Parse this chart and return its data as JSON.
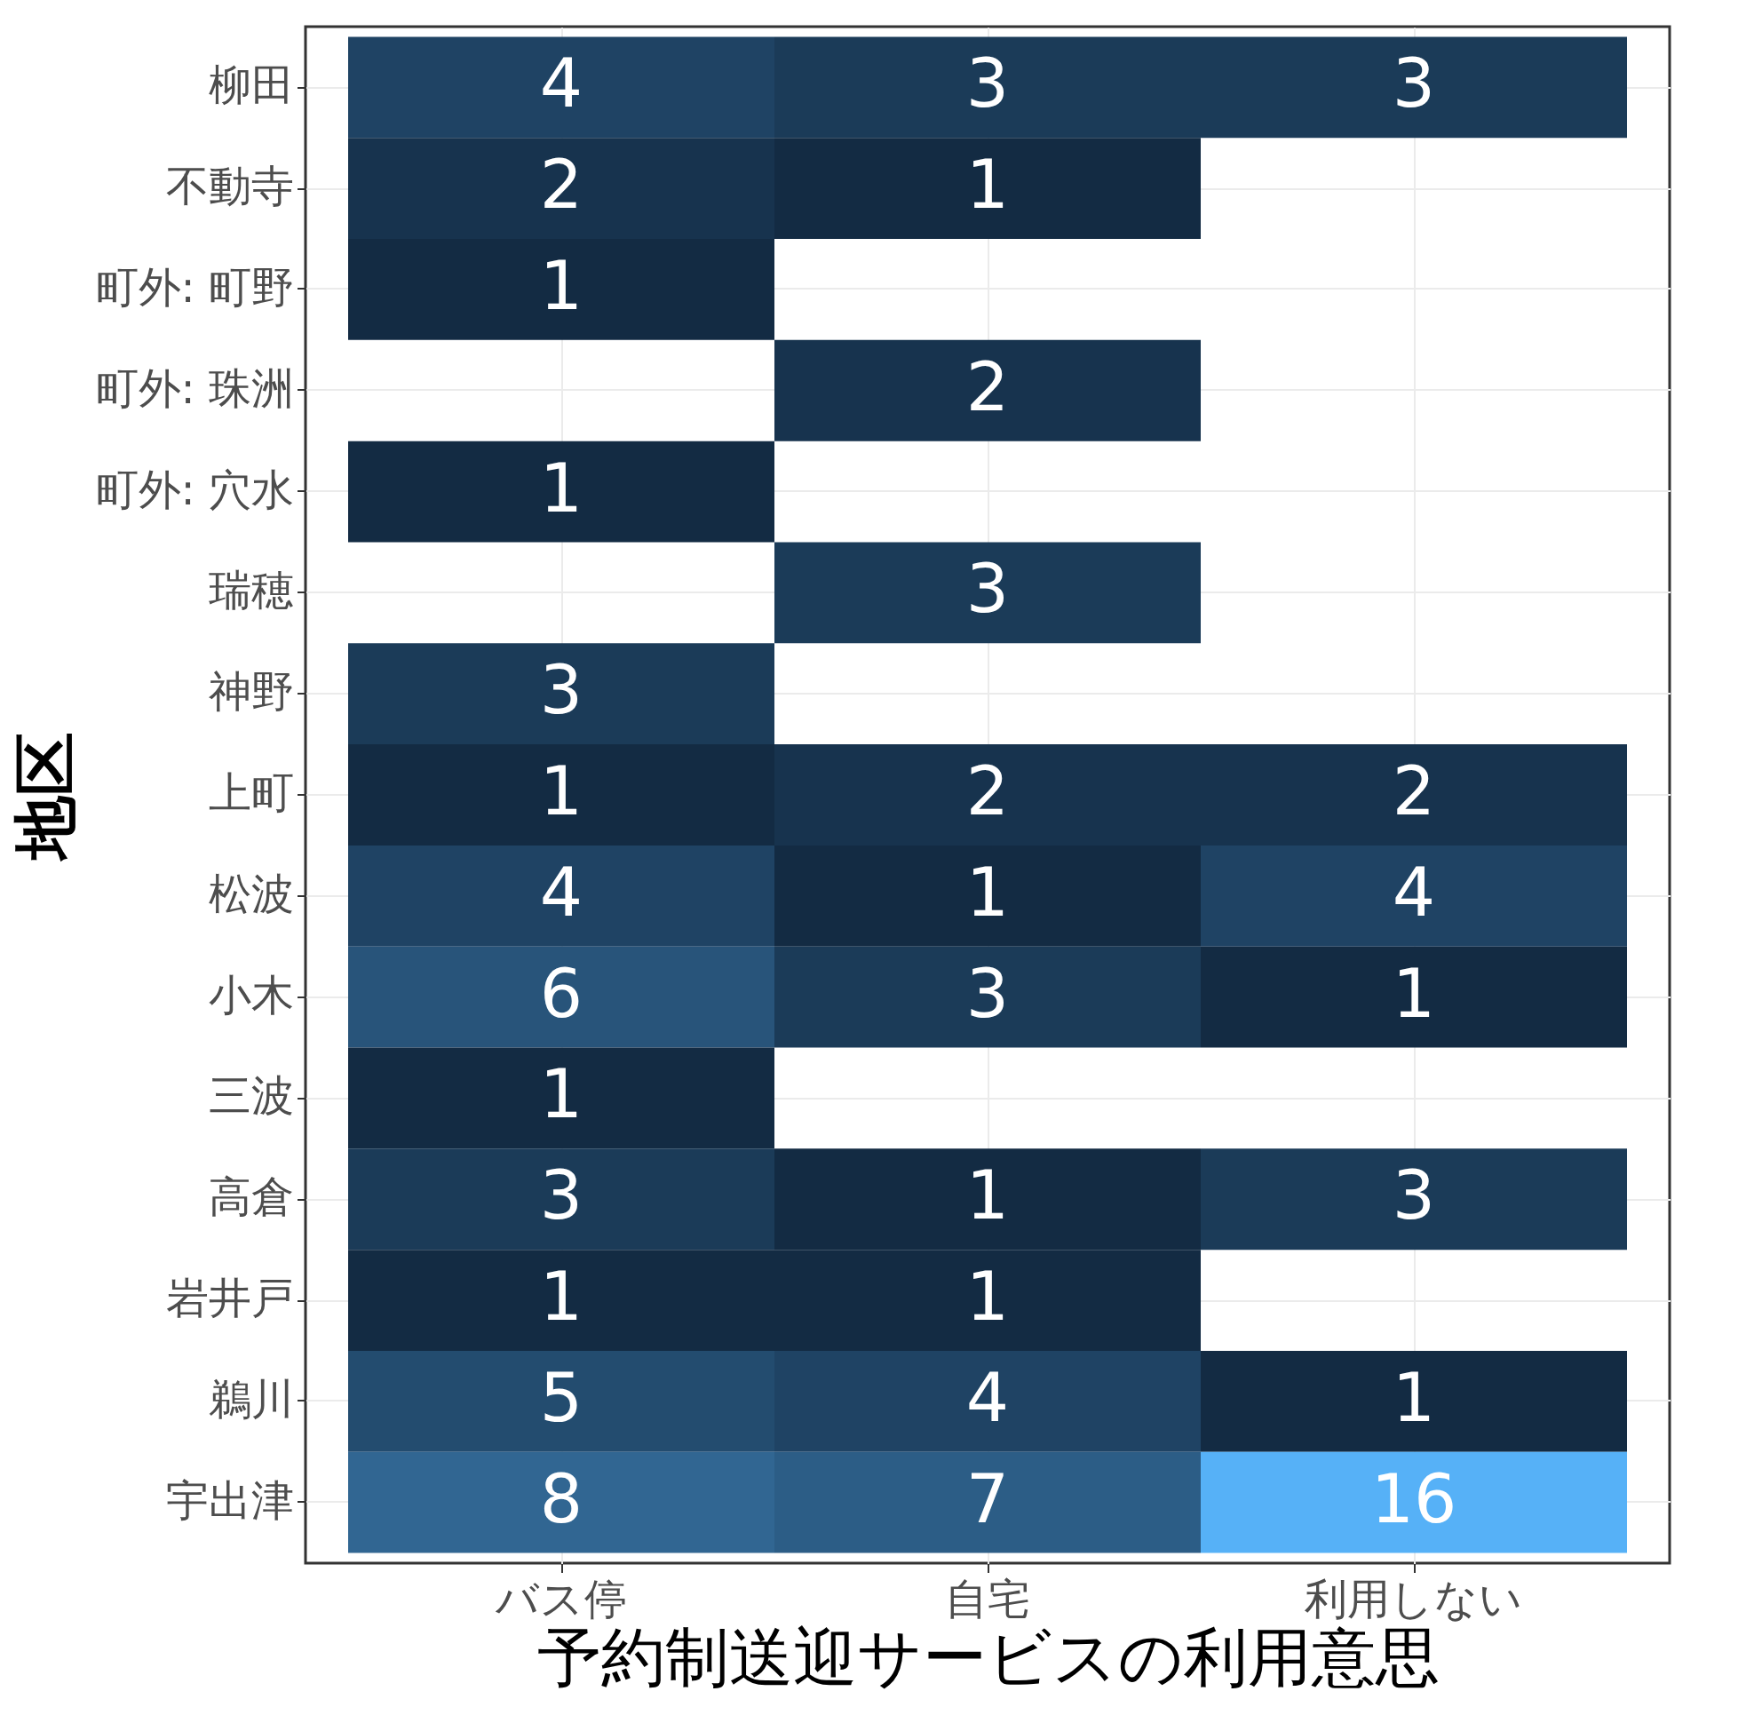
{
  "chart_data": {
    "type": "heatmap",
    "xlabel": "予約制送迎サービスの利用意思",
    "ylabel": "地区",
    "categories": [
      "バス停",
      "自宅",
      "利用しない"
    ],
    "y_categories": [
      "柳田",
      "不動寺",
      "町外: 町野",
      "町外: 珠洲",
      "町外: 穴水",
      "瑞穂",
      "神野",
      "上町",
      "松波",
      "小木",
      "三波",
      "高倉",
      "岩井戸",
      "鵜川",
      "宇出津"
    ],
    "cells": [
      [
        4,
        3,
        3
      ],
      [
        2,
        1,
        null
      ],
      [
        1,
        null,
        null
      ],
      [
        null,
        2,
        null
      ],
      [
        1,
        null,
        null
      ],
      [
        null,
        3,
        null
      ],
      [
        3,
        null,
        null
      ],
      [
        1,
        2,
        2
      ],
      [
        4,
        1,
        4
      ],
      [
        6,
        3,
        1
      ],
      [
        1,
        null,
        null
      ],
      [
        3,
        1,
        3
      ],
      [
        1,
        1,
        null
      ],
      [
        5,
        4,
        1
      ],
      [
        8,
        7,
        16
      ]
    ],
    "data_labels": true,
    "grid": true
  }
}
